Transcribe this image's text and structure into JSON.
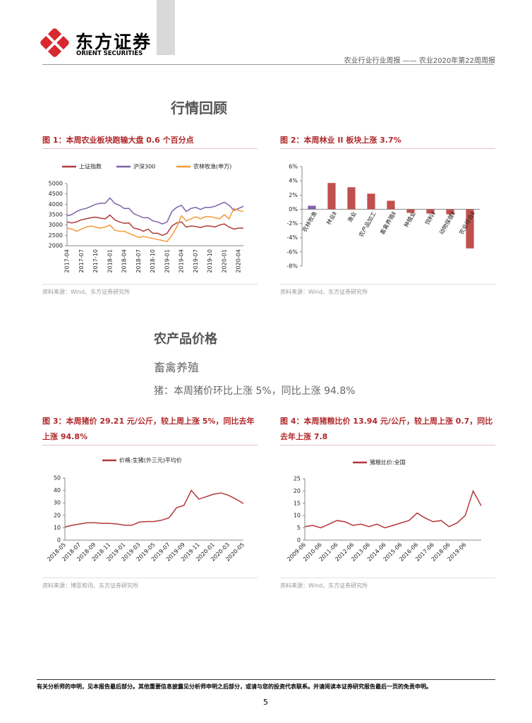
{
  "header": {
    "logo_cn": "东方证券",
    "logo_en": "ORIENT SECURITIES",
    "report": "农业行业行业周报 —— 农业2020年第22周周报"
  },
  "sections": {
    "market_review": "行情回顾",
    "prices": "农产品价格",
    "livestock": "畜禽养殖",
    "pig_summary": "猪：本周猪价环比上涨 5%，同比上涨 94.8%"
  },
  "chart_data": [
    {
      "type": "line",
      "title": "图 1：本周农业板块跑输大盘 0.6 个百分点",
      "source": "资料来源：Wind、东方证券研究所",
      "categories": [
        "2017-04",
        null,
        null,
        "2017-07",
        null,
        null,
        "2017-10",
        null,
        null,
        "2018-01",
        null,
        null,
        "2018-04",
        null,
        null,
        "2018-07",
        null,
        null,
        "2018-10",
        null,
        null,
        "2019-01",
        null,
        null,
        "2019-04",
        null,
        null,
        "2019-07",
        null,
        null,
        "2019-10",
        null,
        null,
        "2020-01",
        null,
        null,
        "2020-04",
        null
      ],
      "series": [
        {
          "name": "上证指数",
          "color": "#b23a3a",
          "values": [
            3150,
            3100,
            3150,
            3250,
            3300,
            3350,
            3380,
            3330,
            3300,
            3480,
            3250,
            3150,
            3080,
            3100,
            2850,
            2800,
            2700,
            2800,
            2600,
            2600,
            2500,
            2600,
            2950,
            3100,
            3150,
            2900,
            2950,
            2930,
            2880,
            2950,
            2950,
            2900,
            3000,
            3050,
            2900,
            2800,
            2850,
            2850
          ]
        },
        {
          "name": "沪深300",
          "color": "#7e62a8",
          "values": [
            3450,
            3500,
            3650,
            3750,
            3800,
            3900,
            4000,
            4050,
            4050,
            4300,
            4050,
            3950,
            3800,
            3800,
            3550,
            3450,
            3350,
            3350,
            3200,
            3150,
            3050,
            3150,
            3650,
            3850,
            3950,
            3650,
            3800,
            3850,
            3750,
            3850,
            3850,
            3900,
            4000,
            4100,
            3950,
            3700,
            3800,
            3900
          ]
        },
        {
          "name": "农林牧渔(申万)",
          "color": "#f39a3a",
          "values": [
            2850,
            2800,
            2700,
            2800,
            2900,
            2950,
            2900,
            2850,
            2900,
            3000,
            2750,
            2700,
            2700,
            2600,
            2500,
            2400,
            2450,
            2400,
            2350,
            2300,
            2250,
            2200,
            2500,
            2900,
            3450,
            3200,
            3300,
            3400,
            3300,
            3400,
            3400,
            3350,
            3300,
            3500,
            3300,
            3800,
            3700,
            3650
          ]
        }
      ],
      "ylim": [
        2000,
        5000
      ],
      "yticks": [
        2000,
        2500,
        3000,
        3500,
        4000,
        4500,
        5000
      ]
    },
    {
      "type": "bar",
      "title": "图 2：本周林业 II 板块上涨 3.7%",
      "source": "资料来源：Wind、东方证券研究所",
      "categories": [
        "农林牧渔",
        "林业Ⅱ",
        "渔业",
        "农产品加工",
        "畜禽养殖Ⅱ",
        "种植业",
        "饲料Ⅱ",
        "动物保健Ⅱ",
        "农业综合Ⅱ"
      ],
      "values": [
        0.5,
        3.7,
        3.1,
        2.2,
        1.2,
        -0.5,
        -0.6,
        -0.7,
        -5.5
      ],
      "colors": [
        "#7e62a8",
        "#c0504d",
        "#c0504d",
        "#c0504d",
        "#c0504d",
        "#c0504d",
        "#c0504d",
        "#c0504d",
        "#c0504d"
      ],
      "ylim": [
        -8,
        6
      ],
      "yticks": [
        {
          "value": -8,
          "label": "-8%"
        },
        {
          "value": -6,
          "label": "-6%"
        },
        {
          "value": -4,
          "label": "-4%"
        },
        {
          "value": -2,
          "label": "-2%"
        },
        {
          "value": 0,
          "label": "0%"
        },
        {
          "value": 2,
          "label": "2%"
        },
        {
          "value": 4,
          "label": "4%"
        },
        {
          "value": 6,
          "label": "6%"
        }
      ]
    },
    {
      "type": "line",
      "title": "图 3：本周猪价 29.21 元/公斤，较上周上涨 5%，同比去年上涨 94.8%",
      "source": "资料来源：博亚和讯、东方证券研究所",
      "categories": [
        "2018-05",
        null,
        "2018-07",
        null,
        "2018-09",
        null,
        "2018-11",
        null,
        "2019-01",
        null,
        "2019-03",
        null,
        "2019-05",
        null,
        "2019-07",
        null,
        "2019-09",
        null,
        "2019-11",
        null,
        "2020-01",
        null,
        "2020-03",
        null,
        "2020-05"
      ],
      "series": [
        {
          "name": "价格:生猪(外三元)平均价",
          "color": "#b5373b",
          "values": [
            10.5,
            12,
            13,
            14,
            14,
            13.5,
            13.5,
            13,
            12,
            12,
            14.5,
            15,
            15,
            16,
            18,
            26,
            28,
            40,
            33,
            35,
            37,
            38,
            36,
            33,
            29.5
          ]
        }
      ],
      "ylim": [
        0,
        50
      ],
      "yticks": [
        0,
        10,
        20,
        30,
        40,
        50
      ]
    },
    {
      "type": "line",
      "title": "图 4：本周猪粮比价 13.94 元/公斤，较上周上涨 0.7，同比去年上涨 7.8",
      "source": "资料来源：Wind、东方证券研究所",
      "categories": [
        "2009-06",
        null,
        "2010-06",
        null,
        "2011-06",
        null,
        "2012-06",
        null,
        "2013-06",
        null,
        "2014-06",
        null,
        "2015-06",
        null,
        "2016-06",
        null,
        "2017-06",
        null,
        "2018-06",
        null,
        "2019-06",
        null,
        null
      ],
      "series": [
        {
          "name": "猪粮比价:全国",
          "color": "#b5373b",
          "values": [
            5.5,
            6,
            5,
            6.5,
            8,
            7.5,
            6,
            6.5,
            5.5,
            6.5,
            5,
            6,
            7,
            8,
            11,
            9,
            7.5,
            8,
            5.5,
            7,
            10,
            20,
            14
          ]
        }
      ],
      "ylim": [
        0,
        25
      ],
      "yticks": [
        0,
        5,
        10,
        15,
        20,
        25
      ]
    }
  ],
  "footer": {
    "disclaimer": "有关分析师的申明，见本报告最后部分。其他重要信息披露见分析师申明之后部分，或请与您的投资代表联系。并请阅读本证券研究报告最后一页的免责申明。",
    "page": "5"
  }
}
